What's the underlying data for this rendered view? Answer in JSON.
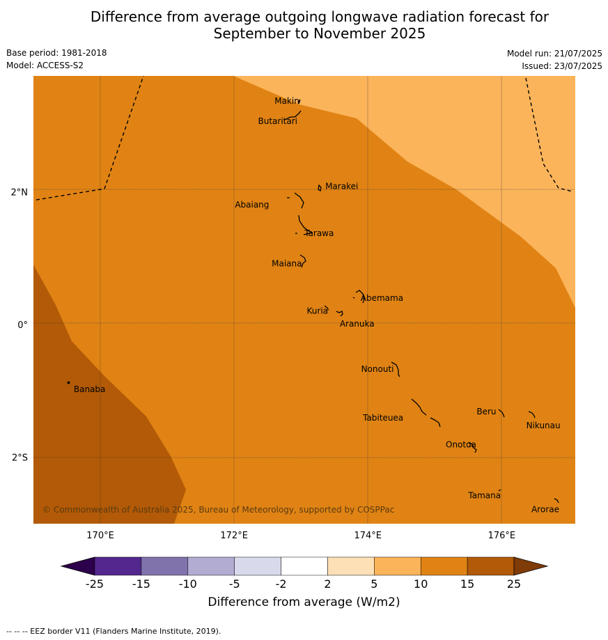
{
  "title": {
    "line1": "Difference from average outgoing longwave radiation forecast for",
    "line2": "September to November 2025"
  },
  "meta": {
    "base_period": "Base period: 1981-2018",
    "model": "Model: ACCESS-S2",
    "model_run": "Model run: 21/07/2025",
    "issued": "Issued: 23/07/2025"
  },
  "map": {
    "lon_range": [
      169.0,
      177.1
    ],
    "lat_range": [
      -3.0,
      3.75
    ],
    "lon_ticks": [
      {
        "value": 170,
        "label": "170°E"
      },
      {
        "value": 172,
        "label": "172°E"
      },
      {
        "value": 174,
        "label": "174°E"
      },
      {
        "value": 176,
        "label": "176°E"
      }
    ],
    "lat_ticks": [
      {
        "value": 2,
        "label": "2°N"
      },
      {
        "value": 0,
        "label": "0°"
      },
      {
        "value": -2,
        "label": "2°S"
      }
    ],
    "islands": [
      {
        "name": "Makin",
        "lon": 172.98,
        "lat": 3.33
      },
      {
        "name": "Butaritari",
        "lon": 172.92,
        "lat": 3.12
      },
      {
        "name": "Marakei",
        "lon": 173.28,
        "lat": 2.0
      },
      {
        "name": "Abaiang",
        "lon": 172.97,
        "lat": 1.85
      },
      {
        "name": "Tarawa",
        "lon": 173.0,
        "lat": 1.42
      },
      {
        "name": "Maiana",
        "lon": 173.02,
        "lat": 0.95
      },
      {
        "name": "Abemama",
        "lon": 173.87,
        "lat": 0.4
      },
      {
        "name": "Kuria",
        "lon": 173.42,
        "lat": 0.24
      },
      {
        "name": "Aranuka",
        "lon": 173.6,
        "lat": 0.17
      },
      {
        "name": "Banaba",
        "lon": 169.54,
        "lat": -0.88
      },
      {
        "name": "Nonouti",
        "lon": 174.42,
        "lat": -0.68
      },
      {
        "name": "Beru",
        "lon": 176.0,
        "lat": -1.33
      },
      {
        "name": "Tabiteuea",
        "lon": 174.8,
        "lat": -1.3
      },
      {
        "name": "Nikunau",
        "lon": 176.45,
        "lat": -1.35
      },
      {
        "name": "Onotoa",
        "lon": 175.58,
        "lat": -1.8
      },
      {
        "name": "Tamana",
        "lon": 175.98,
        "lat": -2.5
      },
      {
        "name": "Arorae",
        "lon": 176.82,
        "lat": -2.64
      }
    ],
    "copyright": "© Commonwealth of Australia 2025, Bureau of Meteorology, supported by COSPPac",
    "zone_colors": {
      "5_to_10": "#fbb45a",
      "10_to_15": "#e08314",
      "15_to_25": "#b25a07"
    }
  },
  "colorbar": {
    "boundaries": [
      "-25",
      "-15",
      "-10",
      "-5",
      "-2",
      "2",
      "5",
      "10",
      "15",
      "25"
    ],
    "colors": [
      "#54278f",
      "#8073ac",
      "#b2abd2",
      "#d8daeb",
      "#ffffff",
      "#fee0b6",
      "#fbb45a",
      "#e08314",
      "#b25a07"
    ],
    "under_color": "#2d004b",
    "over_color": "#7f3b08",
    "label": "Difference from average (W/m2)"
  },
  "footer": "--  --  -- EEZ border V11 (Flanders Marine Institute, 2019)."
}
